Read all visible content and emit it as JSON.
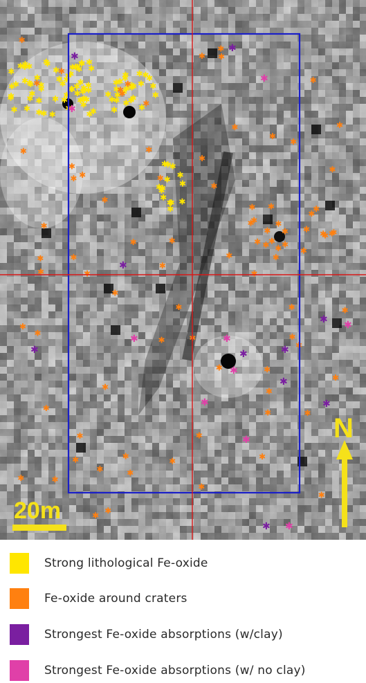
{
  "map": {
    "scale_bar_label": "20m",
    "north_label": "N",
    "colors": {
      "study_box": "#1a1fc8",
      "crosshair": "#d81818",
      "scale_and_north": "#f5e11a"
    }
  },
  "legend": {
    "items": [
      {
        "label": "Strong lithological Fe-oxide",
        "color": "#ffe600",
        "icon": "yellow-swatch"
      },
      {
        "label": "Fe-oxide around craters",
        "color": "#ff8010",
        "icon": "orange-swatch"
      },
      {
        "label": "Strongest Fe-oxide absorptions (w/clay)",
        "color": "#7a1fa0",
        "icon": "purple-swatch"
      },
      {
        "label": "Strongest Fe-oxide absorptions (w/ no clay)",
        "color": "#e040a8",
        "icon": "magenta-swatch"
      }
    ]
  }
}
